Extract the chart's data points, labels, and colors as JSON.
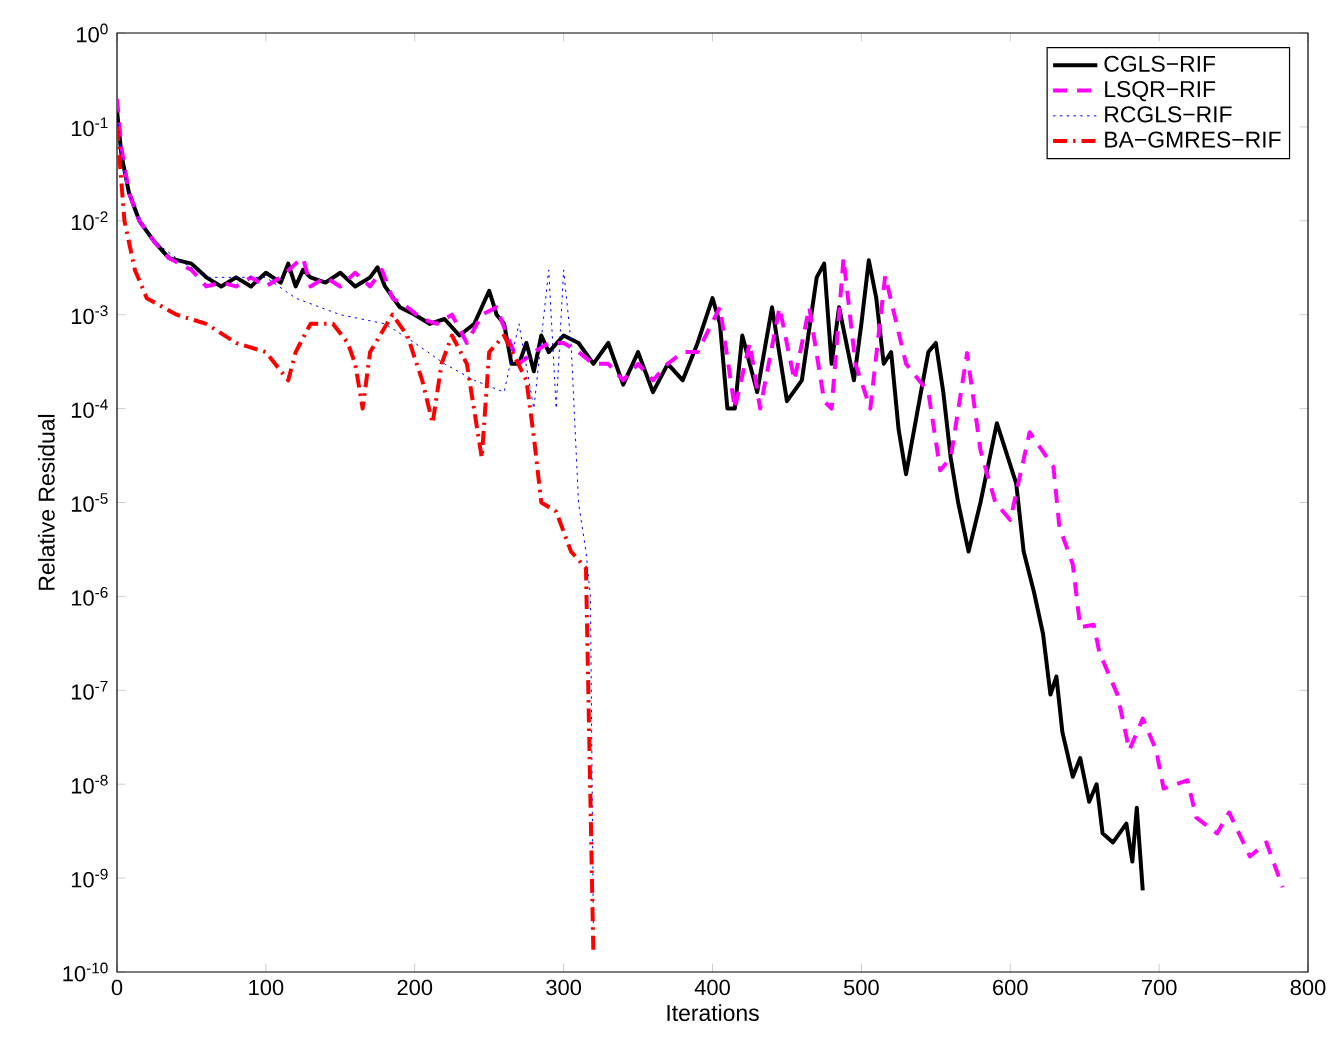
{
  "chart_data": {
    "type": "line",
    "xlabel": "Iterations",
    "ylabel": "Relative Residual",
    "log": "y",
    "grid": false,
    "legend": "top right",
    "marker": "none",
    "xlim": [
      0,
      800
    ],
    "xticks": [
      0,
      100,
      200,
      300,
      400,
      500,
      600,
      700,
      800
    ],
    "ylim": [
      1e-10,
      1
    ],
    "yticks": [
      {
        "value": 1e-10,
        "label": "10$^{-10}$"
      },
      {
        "value": 1e-09,
        "label": "10$^{-9}$"
      },
      {
        "value": 1e-08,
        "label": "10$^{-8}$"
      },
      {
        "value": 1e-07,
        "label": "10$^{-7}$"
      },
      {
        "value": 1e-06,
        "label": "10$^{-6}$"
      },
      {
        "value": 1e-05,
        "label": "10$^{-5}$"
      },
      {
        "value": 0.0001,
        "label": "10$^{-4}$"
      },
      {
        "value": 0.001,
        "label": "10$^{-3}$"
      },
      {
        "value": 0.01,
        "label": "10$^{-2}$"
      },
      {
        "value": 0.1,
        "label": "10$^{-1}$"
      },
      {
        "value": 1,
        "label": "10$^{0}$"
      }
    ],
    "series": [
      {
        "name": "CGLS−RIF",
        "color": "#000000",
        "line_style": "solid",
        "x": [
          0,
          3,
          8,
          15,
          25,
          35,
          50,
          60,
          70,
          80,
          90,
          100,
          110,
          115,
          120,
          125,
          130,
          140,
          150,
          160,
          170,
          175,
          180,
          190,
          200,
          210,
          220,
          230,
          240,
          245,
          250,
          255,
          260,
          265,
          270,
          275,
          280,
          285,
          290,
          300,
          310,
          320,
          330,
          340,
          350,
          360,
          370,
          380,
          390,
          400,
          405,
          410,
          415,
          420,
          430,
          440,
          450,
          460,
          470,
          475,
          480,
          485,
          495,
          500,
          505,
          510,
          515,
          520,
          525,
          530,
          540,
          545,
          550,
          555,
          560,
          565,
          572,
          580,
          591,
          604,
          609,
          616,
          622,
          627,
          631,
          635,
          642,
          647,
          653,
          658,
          662,
          669,
          678,
          682,
          685,
          689
        ],
        "values": [
          0.15,
          0.05,
          0.02,
          0.01,
          0.006,
          0.004,
          0.0035,
          0.0025,
          0.002,
          0.0025,
          0.002,
          0.0028,
          0.0022,
          0.0035,
          0.002,
          0.003,
          0.0025,
          0.0022,
          0.0028,
          0.002,
          0.0025,
          0.0032,
          0.002,
          0.0012,
          0.001,
          0.0008,
          0.0009,
          0.0006,
          0.0008,
          0.0012,
          0.0018,
          0.001,
          0.0008,
          0.0003,
          0.0003,
          0.0005,
          0.00025,
          0.0006,
          0.0004,
          0.0006,
          0.0005,
          0.0003,
          0.0005,
          0.00018,
          0.0004,
          0.00015,
          0.0003,
          0.0002,
          0.0005,
          0.0015,
          0.0008,
          0.0001,
          0.0001,
          0.0006,
          0.00015,
          0.0012,
          0.00012,
          0.0002,
          0.0025,
          0.0035,
          0.0003,
          0.0012,
          0.0002,
          0.0008,
          0.0038,
          0.0015,
          0.0003,
          0.0004,
          6e-05,
          2e-05,
          0.00015,
          0.0004,
          0.0005,
          0.00015,
          3e-05,
          1e-05,
          3e-06,
          1e-05,
          7e-05,
          1.6e-05,
          3e-06,
          1.1e-06,
          4e-07,
          9e-08,
          1.4e-07,
          3.6e-08,
          1.2e-08,
          1.9e-08,
          6.5e-09,
          1e-08,
          3e-09,
          2.4e-09,
          3.8e-09,
          1.5e-09,
          5.6e-09,
          7.4e-10
        ]
      },
      {
        "name": "LSQR−RIF",
        "color": "#ff00ff",
        "line_style": "dashed",
        "x": [
          0,
          3,
          8,
          15,
          25,
          35,
          50,
          60,
          70,
          80,
          90,
          100,
          110,
          120,
          125,
          130,
          140,
          150,
          160,
          170,
          178,
          185,
          195,
          205,
          215,
          225,
          235,
          245,
          255,
          262,
          270,
          280,
          290,
          300,
          310,
          320,
          330,
          340,
          350,
          360,
          370,
          380,
          390,
          405,
          415,
          425,
          432,
          445,
          455,
          465,
          475,
          480,
          488,
          496,
          506,
          516,
          530,
          545,
          553,
          560,
          571,
          580,
          590,
          600,
          613,
          629,
          633,
          642,
          647,
          656,
          660,
          672,
          680,
          689,
          698,
          703,
          719,
          725,
          739,
          747,
          761,
          772,
          783
        ],
        "values": [
          0.2,
          0.06,
          0.02,
          0.01,
          0.006,
          0.004,
          0.003,
          0.002,
          0.0022,
          0.002,
          0.0025,
          0.002,
          0.0025,
          0.0035,
          0.004,
          0.002,
          0.0025,
          0.002,
          0.0028,
          0.002,
          0.003,
          0.0015,
          0.0012,
          0.0009,
          0.0008,
          0.001,
          0.0005,
          0.001,
          0.0012,
          0.0006,
          0.0003,
          0.0004,
          0.0005,
          0.0005,
          0.0004,
          0.0003,
          0.0003,
          0.0002,
          0.0003,
          0.0002,
          0.0003,
          0.0004,
          0.0004,
          0.0012,
          0.0001,
          0.0005,
          0.0001,
          0.0012,
          0.0002,
          0.0012,
          0.00012,
          0.0001,
          0.004,
          0.0003,
          0.0001,
          0.0026,
          0.0003,
          0.00015,
          2.2e-05,
          3e-05,
          0.00039,
          3.6e-05,
          1e-05,
          6.5e-06,
          5.6e-05,
          2.4e-05,
          5.5e-06,
          2.2e-06,
          4.7e-07,
          5e-07,
          2.5e-07,
          9e-08,
          2.3e-08,
          5e-08,
          2.3e-08,
          9e-09,
          1.1e-08,
          4.4e-09,
          3e-09,
          5e-09,
          1.7e-09,
          2.4e-09,
          8e-10
        ]
      },
      {
        "name": "RCGLS−RIF",
        "color": "#0000ff",
        "line_style": "dotted",
        "x": [
          0,
          3,
          8,
          15,
          25,
          40,
          60,
          80,
          100,
          120,
          150,
          180,
          200,
          220,
          240,
          260,
          270,
          280,
          290,
          295,
          300,
          305,
          310,
          315,
          318,
          320
        ],
        "values": [
          0.15,
          0.05,
          0.02,
          0.01,
          0.006,
          0.004,
          0.0025,
          0.0025,
          0.0025,
          0.0015,
          0.001,
          0.0008,
          0.0005,
          0.0003,
          0.0002,
          0.00015,
          0.0008,
          0.0001,
          0.003,
          0.0001,
          0.003,
          0.0005,
          1e-05,
          3e-06,
          1e-06,
          3e-10
        ]
      },
      {
        "name": "BA−GMRES−RIF",
        "color": "#ff0000",
        "line_style": "dashdot",
        "x": [
          0,
          5,
          12,
          20,
          40,
          60,
          80,
          100,
          115,
          120,
          130,
          145,
          155,
          160,
          165,
          170,
          185,
          195,
          205,
          212,
          218,
          225,
          235,
          245,
          250,
          260,
          275,
          280,
          285,
          295,
          305,
          315,
          320
        ],
        "values": [
          0.1,
          0.01,
          0.003,
          0.0015,
          0.001,
          0.0008,
          0.0005,
          0.0004,
          0.0002,
          0.0004,
          0.0008,
          0.0008,
          0.0005,
          0.0003,
          0.0001,
          0.0004,
          0.001,
          0.0006,
          0.0002,
          7e-05,
          0.0003,
          0.0006,
          0.0003,
          3e-05,
          0.0004,
          0.0006,
          0.0002,
          5e-05,
          1e-05,
          8e-06,
          3e-06,
          2e-06,
          1.5e-10
        ]
      }
    ]
  }
}
